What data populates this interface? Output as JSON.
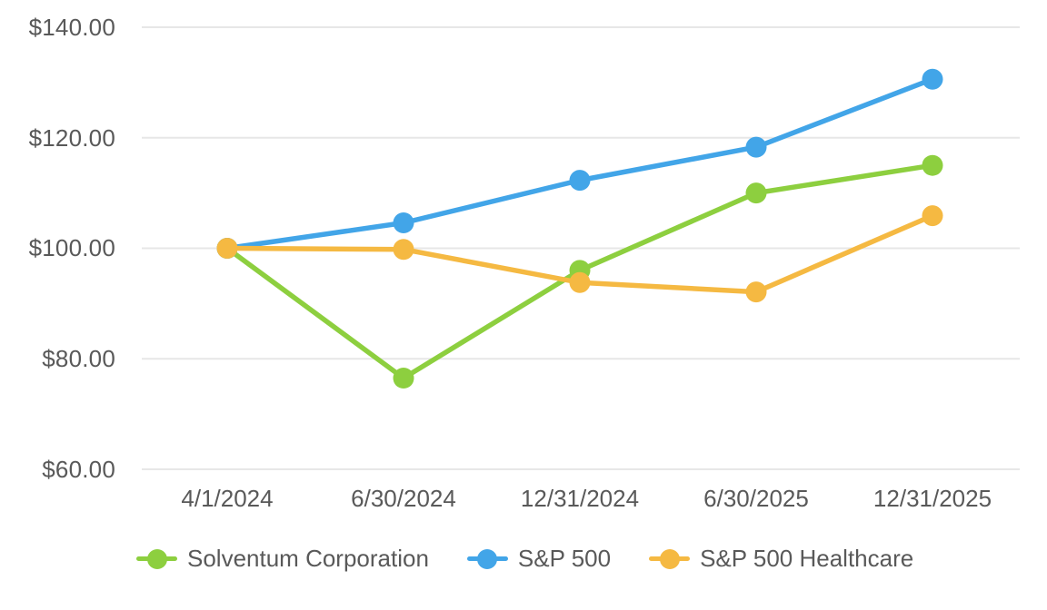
{
  "chart_data": {
    "type": "line",
    "title": "",
    "x_labels": [
      "4/1/2024",
      "6/30/2024",
      "12/31/2024",
      "6/30/2025",
      "12/31/2025"
    ],
    "y_ticks": [
      140,
      120,
      100,
      80,
      60
    ],
    "y_tick_labels": [
      "$140.00",
      "$120.00",
      "$100.00",
      "$80.00",
      "$60.00"
    ],
    "ylim": [
      60,
      140
    ],
    "grid": true,
    "legend_position": "bottom",
    "series": [
      {
        "name": "Solventum Corporation",
        "color": "#8DCF3F",
        "values": [
          100,
          76.5,
          96,
          110,
          115
        ]
      },
      {
        "name": "S&P 500",
        "color": "#42A5E8",
        "values": [
          100,
          104.6,
          112.3,
          118.3,
          130.6
        ]
      },
      {
        "name": "S&P 500 Healthcare",
        "color": "#F5B942",
        "values": [
          100,
          99.8,
          93.8,
          92.1,
          105.9
        ]
      }
    ],
    "styles": {
      "grid_color": "#E7E7E7",
      "text_color": "#595959",
      "background": "#FFFFFF",
      "line_width": 5.5,
      "point_radius": 11.5
    }
  }
}
